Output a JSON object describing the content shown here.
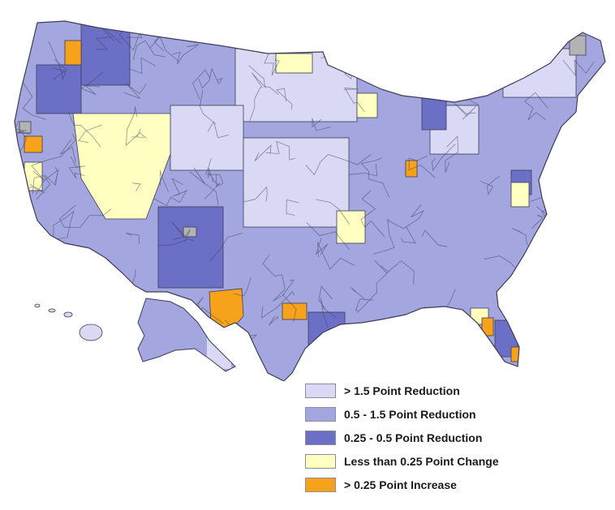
{
  "legend": {
    "items": [
      {
        "label": "> 1.5 Point Reduction",
        "color": "#d9d9f5"
      },
      {
        "label": "0.5 - 1.5 Point Reduction",
        "color": "#a3a6df"
      },
      {
        "label": "0.25 - 0.5 Point Reduction",
        "color": "#6b6fc6"
      },
      {
        "label": "Less than 0.25 Point Change",
        "color": "#ffffc2"
      },
      {
        "label": "> 0.25 Point Increase",
        "color": "#f7a21b"
      }
    ]
  },
  "colors": {
    "no_data": "#b3b3b3",
    "border": "#3d3d55"
  }
}
